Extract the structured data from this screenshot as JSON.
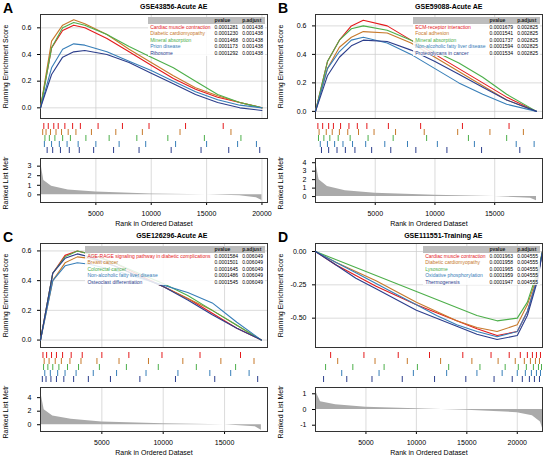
{
  "chart_data": [
    {
      "type": "line",
      "panel_label": "A",
      "title": "GSE43856-Acute AE",
      "x_label": "Rank in Ordered Dataset",
      "y_label": "Running Enrichment Score",
      "xlim": [
        0,
        20500
      ],
      "xticks": [
        5000,
        10000,
        15000,
        20000
      ],
      "ylim": [
        -0.08,
        0.7
      ],
      "yticks": [
        {
          "value": 0,
          "label": "0.0"
        },
        0.2,
        0.4,
        0.6
      ],
      "grid": true,
      "legend_header": [
        "pvalue",
        "p.adjust"
      ],
      "x": [
        0,
        1000,
        2000,
        3000,
        4000,
        6000,
        8000,
        10000,
        12000,
        14000,
        16000,
        18000,
        20000
      ],
      "series": [
        {
          "name": "Cardiac muscle contraction",
          "color": "#e41a1c",
          "pvalue": 0.0001281,
          "p_adjust": 0.001438,
          "values": [
            0,
            0.45,
            0.58,
            0.62,
            0.6,
            0.52,
            0.42,
            0.32,
            0.22,
            0.14,
            0.08,
            0.04,
            0
          ],
          "hits": [
            300,
            700,
            1200,
            1600,
            2200,
            2900,
            3600,
            5200,
            7400,
            9800,
            13100,
            16500
          ]
        },
        {
          "name": "Diabetic cardiomyopathy",
          "color": "#c7792b",
          "pvalue": 0.000123,
          "p_adjust": 0.001438,
          "values": [
            0,
            0.5,
            0.62,
            0.66,
            0.63,
            0.55,
            0.44,
            0.34,
            0.24,
            0.15,
            0.09,
            0.04,
            0
          ],
          "hits": [
            200,
            500,
            900,
            1400,
            1900,
            2500,
            3200,
            4600,
            6800,
            9200,
            12600,
            17200
          ]
        },
        {
          "name": "Mineral absorption",
          "color": "#4daf4a",
          "pvalue": 0.0001468,
          "p_adjust": 0.001438,
          "values": [
            0,
            0.45,
            0.6,
            0.64,
            0.62,
            0.55,
            0.46,
            0.38,
            0.3,
            0.2,
            0.1,
            0.04,
            0
          ],
          "hits": [
            400,
            800,
            1300,
            2000,
            2700,
            4100,
            6200,
            8700,
            11500,
            14800,
            18100
          ]
        },
        {
          "name": "Prion disease",
          "color": "#377eb8",
          "pvalue": 0.0001173,
          "p_adjust": 0.001438,
          "values": [
            0,
            0.3,
            0.44,
            0.48,
            0.47,
            0.42,
            0.35,
            0.28,
            0.2,
            0.12,
            0.06,
            0.02,
            0
          ],
          "hits": [
            350,
            1000,
            1700,
            2400,
            3400,
            5000,
            7100,
            9500,
            12200,
            15000,
            17800,
            19500
          ]
        },
        {
          "name": "Ribosome",
          "color": "#2c3e8c",
          "pvalue": 0.0001292,
          "p_adjust": 0.001438,
          "values": [
            0,
            0.25,
            0.38,
            0.42,
            0.43,
            0.4,
            0.34,
            0.26,
            0.18,
            0.1,
            0.04,
            0,
            -0.02
          ],
          "hits": [
            600,
            1100,
            1800,
            2600,
            3500,
            4800,
            6600,
            8900,
            11800,
            14500,
            17000,
            19800
          ]
        }
      ],
      "ranked_metric": {
        "y_label": "Ranked List Metric",
        "ylim": [
          -0.8,
          3.8
        ],
        "yticks": [
          0,
          1,
          2,
          3
        ],
        "x": [
          0,
          300,
          1000,
          2500,
          5000,
          10000,
          15000,
          18000,
          19500,
          20000
        ],
        "values": [
          3.5,
          1.5,
          0.9,
          0.5,
          0.3,
          0.1,
          0,
          -0.1,
          -0.3,
          -0.6
        ]
      }
    },
    {
      "type": "line",
      "panel_label": "B",
      "title": "GSE59088-Acute AE",
      "x_label": "Rank in Ordered Dataset",
      "y_label": "Running Enrichment Score",
      "xlim": [
        0,
        19000
      ],
      "xticks": [
        5000,
        10000,
        15000
      ],
      "ylim": [
        -0.05,
        0.68
      ],
      "yticks": [
        {
          "value": 0,
          "label": "0.0"
        },
        0.2,
        0.4,
        0.6
      ],
      "grid": true,
      "legend_header": [
        "pvalue",
        "p.adjust"
      ],
      "x": [
        0,
        1000,
        2000,
        3000,
        4000,
        6000,
        8000,
        10000,
        12000,
        14000,
        16000,
        18500
      ],
      "series": [
        {
          "name": "ECM-receptor interaction",
          "color": "#e41a1c",
          "pvalue": 0.0001679,
          "p_adjust": 0.002825,
          "values": [
            0,
            0.35,
            0.5,
            0.6,
            0.64,
            0.6,
            0.5,
            0.4,
            0.3,
            0.2,
            0.1,
            0
          ],
          "hits": [
            200,
            600,
            1100,
            1500,
            2100,
            2800,
            3500,
            4300,
            6100,
            8800,
            12300,
            16200
          ]
        },
        {
          "name": "Focal adhesion",
          "color": "#c7792b",
          "pvalue": 0.0001541,
          "p_adjust": 0.002825,
          "values": [
            0,
            0.3,
            0.45,
            0.52,
            0.56,
            0.55,
            0.48,
            0.38,
            0.28,
            0.18,
            0.08,
            0
          ],
          "hits": [
            300,
            900,
            1400,
            2000,
            2700,
            3600,
            4900,
            6700,
            9100,
            11900,
            14600,
            17400
          ]
        },
        {
          "name": "Mineral absorption",
          "color": "#4daf4a",
          "pvalue": 0.0001737,
          "p_adjust": 0.002825,
          "values": [
            0,
            0.35,
            0.5,
            0.58,
            0.6,
            0.57,
            0.5,
            0.42,
            0.34,
            0.24,
            0.12,
            0
          ],
          "hits": [
            250,
            700,
            1200,
            1900,
            2900,
            4400,
            6500,
            9300,
            12800,
            16000
          ]
        },
        {
          "name": "Non-alcoholic fatty liver disease",
          "color": "#377eb8",
          "pvalue": 0.0001594,
          "p_adjust": 0.002825,
          "values": [
            0,
            0.3,
            0.42,
            0.5,
            0.52,
            0.48,
            0.4,
            0.3,
            0.2,
            0.12,
            0.05,
            0
          ],
          "hits": [
            400,
            1000,
            1600,
            2300,
            3100,
            4200,
            5800,
            7700,
            10200,
            13300,
            16800,
            18300
          ]
        },
        {
          "name": "Proteoglycans in cancer",
          "color": "#2c3e8c",
          "pvalue": 0.0001534,
          "p_adjust": 0.002825,
          "values": [
            0,
            0.25,
            0.38,
            0.46,
            0.5,
            0.49,
            0.43,
            0.35,
            0.26,
            0.17,
            0.08,
            0
          ],
          "hits": [
            500,
            1100,
            1800,
            2500,
            3300,
            4700,
            6300,
            8400,
            11000,
            13900,
            17100
          ]
        }
      ],
      "ranked_metric": {
        "y_label": "Ranked List Metric",
        "ylim": [
          -0.7,
          4.5
        ],
        "yticks": [
          0,
          1,
          2,
          3,
          4
        ],
        "x": [
          0,
          300,
          1000,
          2500,
          5000,
          10000,
          15000,
          18000,
          18500
        ],
        "values": [
          4.2,
          2,
          1.2,
          0.7,
          0.4,
          0.15,
          0,
          -0.2,
          -0.5
        ]
      }
    },
    {
      "type": "line",
      "panel_label": "C",
      "title": "GSE126296-Acute AE",
      "x_label": "Rank in Ordered Dataset",
      "y_label": "Running Enrichment Score",
      "xlim": [
        0,
        18500
      ],
      "xticks": [
        5000,
        10000,
        15000
      ],
      "ylim": [
        -0.05,
        0.65
      ],
      "yticks": [
        {
          "value": 0,
          "label": "0.0"
        },
        0.2,
        0.4,
        0.6
      ],
      "grid": true,
      "legend_header": [
        "pvalue",
        "p.adjust"
      ],
      "x": [
        0,
        1000,
        2000,
        3000,
        4000,
        6000,
        8000,
        10000,
        12000,
        14000,
        16000,
        18000
      ],
      "series": [
        {
          "name": "AGE-RAGE signaling pathway in diabetic complications",
          "color": "#e41a1c",
          "pvalue": 0.0001584,
          "p_adjust": 0.006049,
          "values": [
            0,
            0.45,
            0.57,
            0.6,
            0.58,
            0.52,
            0.44,
            0.36,
            0.28,
            0.18,
            0.08,
            0
          ],
          "hits": [
            200,
            500,
            900,
            1300,
            1800,
            2500,
            3400,
            5000,
            7200,
            9900,
            13000,
            16300
          ]
        },
        {
          "name": "Breast cancer",
          "color": "#c7792b",
          "pvalue": 0.0001501,
          "p_adjust": 0.006049,
          "values": [
            0,
            0.4,
            0.52,
            0.56,
            0.55,
            0.5,
            0.43,
            0.36,
            0.28,
            0.2,
            0.1,
            0
          ],
          "hits": [
            300,
            700,
            1200,
            1700,
            2400,
            3300,
            4600,
            6400,
            8800,
            11600,
            14700,
            17400
          ]
        },
        {
          "name": "Colorectal cancer",
          "color": "#4daf4a",
          "pvalue": 0.0001645,
          "p_adjust": 0.006049,
          "values": [
            0,
            0.45,
            0.56,
            0.6,
            0.58,
            0.52,
            0.45,
            0.38,
            0.3,
            0.2,
            0.1,
            0
          ],
          "hits": [
            250,
            600,
            1000,
            1500,
            2200,
            3100,
            4800,
            7000,
            9600,
            12700,
            15900
          ]
        },
        {
          "name": "Non-alcoholic fatty liver disease",
          "color": "#377eb8",
          "pvalue": 0.0001486,
          "p_adjust": 0.006049,
          "values": [
            0,
            0.4,
            0.5,
            0.52,
            0.51,
            0.47,
            0.42,
            0.37,
            0.32,
            0.25,
            0.12,
            0
          ],
          "hits": [
            350,
            800,
            1400,
            2000,
            2900,
            4300,
            6200,
            8600,
            11200,
            13800,
            15500,
            17000
          ]
        },
        {
          "name": "Osteoclast differentiation",
          "color": "#2c3e8c",
          "pvalue": 0.0001545,
          "p_adjust": 0.006049,
          "values": [
            0,
            0.45,
            0.55,
            0.58,
            0.56,
            0.5,
            0.43,
            0.36,
            0.27,
            0.17,
            0.08,
            0
          ],
          "hits": [
            150,
            450,
            850,
            1300,
            1900,
            2700,
            3900,
            5700,
            8100,
            11000,
            14200,
            17700
          ]
        }
      ],
      "ranked_metric": {
        "y_label": "Ranked List Metric",
        "ylim": [
          -1,
          5.5
        ],
        "yticks": [
          0,
          2,
          4
        ],
        "x": [
          0,
          300,
          1000,
          2500,
          5000,
          10000,
          15000,
          17500,
          18000
        ],
        "values": [
          5,
          2.2,
          1.3,
          0.8,
          0.4,
          0.15,
          0,
          -0.3,
          -0.8
        ]
      }
    },
    {
      "type": "line",
      "panel_label": "D",
      "title": "GSE111551-Training AE",
      "x_label": "Rank in Ordered Dataset",
      "y_label": "Running Enrichment Score",
      "xlim": [
        0,
        22500
      ],
      "xticks": [
        5000,
        10000,
        15000,
        20000
      ],
      "ylim": [
        -0.72,
        0.06
      ],
      "yticks": [
        {
          "value": -0.5,
          "label": "-0.50"
        },
        {
          "value": -0.25,
          "label": "-0.25"
        },
        {
          "value": 0,
          "label": "0.00"
        }
      ],
      "grid": true,
      "legend_header": [
        "pvalue",
        "p.adjust"
      ],
      "x": [
        0,
        2000,
        4000,
        6000,
        8000,
        10000,
        12000,
        14000,
        16000,
        18000,
        20000,
        21000,
        22000,
        22500
      ],
      "series": [
        {
          "name": "Cardiac muscle contraction",
          "color": "#e41a1c",
          "pvalue": 0.0001963,
          "p_adjust": 0.004555,
          "values": [
            0,
            -0.1,
            -0.18,
            -0.26,
            -0.33,
            -0.4,
            -0.46,
            -0.52,
            -0.58,
            -0.63,
            -0.6,
            -0.45,
            -0.2,
            0
          ],
          "hits": [
            1500,
            4800,
            8200,
            11300,
            14600,
            17400,
            19200,
            20300,
            21000,
            21500,
            21900,
            22300
          ]
        },
        {
          "name": "Diabetic cardiomyopathy",
          "color": "#c7792b",
          "pvalue": 0.0001958,
          "p_adjust": 0.004555,
          "values": [
            0,
            -0.08,
            -0.15,
            -0.22,
            -0.3,
            -0.38,
            -0.45,
            -0.52,
            -0.57,
            -0.6,
            -0.55,
            -0.4,
            -0.18,
            0
          ],
          "hits": [
            2200,
            5900,
            9100,
            12400,
            15500,
            18100,
            19800,
            20700,
            21300,
            21800,
            22200
          ]
        },
        {
          "name": "Lysosome",
          "color": "#4daf4a",
          "pvalue": 0.0001965,
          "p_adjust": 0.004555,
          "values": [
            0,
            -0.06,
            -0.12,
            -0.18,
            -0.24,
            -0.3,
            -0.36,
            -0.42,
            -0.48,
            -0.52,
            -0.5,
            -0.38,
            -0.15,
            0
          ],
          "hits": [
            1000,
            3700,
            6800,
            10100,
            13200,
            16300,
            18800,
            20100,
            20900,
            21600,
            22100,
            22400
          ]
        },
        {
          "name": "Oxidative phosphorylation",
          "color": "#377eb8",
          "pvalue": 0.0001959,
          "p_adjust": 0.004555,
          "values": [
            0,
            -0.08,
            -0.16,
            -0.24,
            -0.32,
            -0.4,
            -0.48,
            -0.55,
            -0.6,
            -0.64,
            -0.6,
            -0.45,
            -0.2,
            0
          ],
          "hits": [
            2600,
            6300,
            9700,
            13000,
            16000,
            18500,
            20000,
            20800,
            21400,
            21900,
            22300
          ]
        },
        {
          "name": "Thermogenesis",
          "color": "#2c3e8c",
          "pvalue": 0.0001947,
          "p_adjust": 0.004555,
          "values": [
            0,
            -0.1,
            -0.2,
            -0.28,
            -0.36,
            -0.44,
            -0.5,
            -0.56,
            -0.62,
            -0.66,
            -0.63,
            -0.48,
            -0.22,
            0
          ],
          "hits": [
            800,
            3100,
            5600,
            8600,
            11800,
            14900,
            17700,
            19500,
            20500,
            21200,
            21700,
            22200
          ]
        }
      ],
      "ranked_metric": {
        "y_label": "Ranked List Metric",
        "ylim": [
          -1.4,
          1.4
        ],
        "yticks": [
          -1,
          0,
          1
        ],
        "x": [
          0,
          500,
          2000,
          5000,
          10000,
          15000,
          20000,
          21500,
          22300,
          22500
        ],
        "values": [
          1.2,
          0.5,
          0.3,
          0.15,
          0.05,
          -0.05,
          -0.2,
          -0.4,
          -0.8,
          -1.2
        ]
      }
    }
  ]
}
